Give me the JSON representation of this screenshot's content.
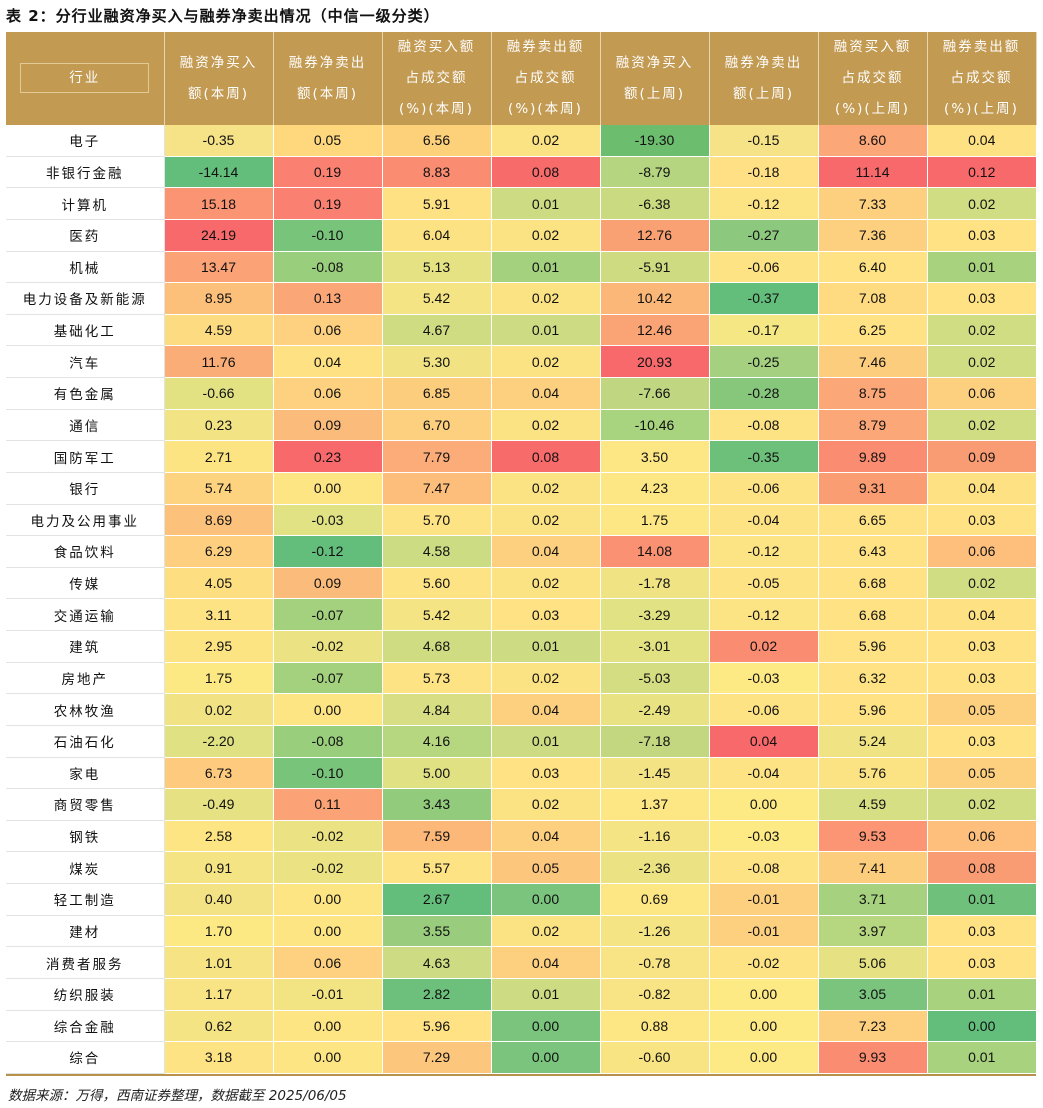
{
  "title": "表 2：分行业融资净买入与融券净卖出情况（中信一级分类）",
  "headers": [
    [
      "行业"
    ],
    [
      "融资净买入",
      "额(本周)"
    ],
    [
      "融券净卖出",
      "额(本周)"
    ],
    [
      "融资买入额",
      "占成交额",
      "(%)(本周)"
    ],
    [
      "融券卖出额",
      "占成交额",
      "(%)(本周)"
    ],
    [
      "融资净买入",
      "额(上周)"
    ],
    [
      "融券净卖出",
      "额(上周)"
    ],
    [
      "融资买入额",
      "占成交额",
      "(%)(上周)"
    ],
    [
      "融券卖出额",
      "占成交额",
      "(%)(上周)"
    ]
  ],
  "rows": [
    {
      "name": "电子",
      "values": [
        "-0.35",
        "0.05",
        "6.56",
        "0.02",
        "-19.30",
        "-0.15",
        "8.60",
        "0.04"
      ],
      "colors": [
        "#f6e287",
        "#ffd87e",
        "#fdd07a",
        "#fbe283",
        "#6dbd6e",
        "#f6e287",
        "#fca777",
        "#fee182"
      ]
    },
    {
      "name": "非银行金融",
      "values": [
        "-14.14",
        "0.19",
        "8.83",
        "0.08",
        "-8.79",
        "-0.18",
        "11.14",
        "0.12"
      ],
      "colors": [
        "#63be7b",
        "#fa8171",
        "#fa8c71",
        "#f86b6b",
        "#b5d580",
        "#ffe084",
        "#f8696b",
        "#f8696b"
      ]
    },
    {
      "name": "计算机",
      "values": [
        "15.18",
        "0.19",
        "5.91",
        "0.01",
        "-6.38",
        "-0.12",
        "7.33",
        "0.02"
      ],
      "colors": [
        "#fa9473",
        "#fa8171",
        "#fee183",
        "#cddc82",
        "#c9da81",
        "#fce384",
        "#fdd07f",
        "#d1dd82"
      ]
    },
    {
      "name": "医药",
      "values": [
        "24.19",
        "-0.10",
        "6.04",
        "0.02",
        "12.76",
        "-0.27",
        "7.36",
        "0.03"
      ],
      "colors": [
        "#f8696b",
        "#78c47a",
        "#fde283",
        "#fbe283",
        "#faa174",
        "#8cc97e",
        "#fdd07f",
        "#fee283"
      ]
    },
    {
      "name": "机械",
      "values": [
        "13.47",
        "-0.08",
        "5.13",
        "0.01",
        "-5.91",
        "-0.06",
        "6.40",
        "0.01"
      ],
      "colors": [
        "#fba276",
        "#99cf7c",
        "#e5e283",
        "#a3d17e",
        "#cfdb81",
        "#fde383",
        "#fee283",
        "#a9d27f"
      ]
    },
    {
      "name": "电力设备及新能源",
      "values": [
        "8.95",
        "0.13",
        "5.42",
        "0.02",
        "10.42",
        "-0.37",
        "7.08",
        "0.03"
      ],
      "colors": [
        "#fcc07b",
        "#fba676",
        "#f5e484",
        "#fbe283",
        "#fbb777",
        "#63be7b",
        "#feda81",
        "#fee283"
      ]
    },
    {
      "name": "基础化工",
      "values": [
        "4.59",
        "0.06",
        "4.67",
        "0.01",
        "12.46",
        "-0.17",
        "6.25",
        "0.02"
      ],
      "colors": [
        "#fddc81",
        "#fdd17f",
        "#cfdc82",
        "#cddc82",
        "#faa374",
        "#f4e784",
        "#fee283",
        "#d1dd82"
      ]
    },
    {
      "name": "汽车",
      "values": [
        "11.76",
        "0.04",
        "5.30",
        "0.02",
        "20.93",
        "-0.25",
        "7.46",
        "0.02"
      ],
      "colors": [
        "#fbad78",
        "#fde182",
        "#f1e384",
        "#fbe283",
        "#f8696b",
        "#a4d080",
        "#fdcd7e",
        "#d1dd82"
      ]
    },
    {
      "name": "有色金属",
      "values": [
        "-0.66",
        "0.06",
        "6.85",
        "0.04",
        "-7.66",
        "-0.28",
        "8.75",
        "0.06"
      ],
      "colors": [
        "#e3e283",
        "#fdd17f",
        "#fdcd7e",
        "#fdd07f",
        "#c0d681",
        "#86c77c",
        "#fca777",
        "#fdd07f"
      ]
    },
    {
      "name": "通信",
      "values": [
        "0.23",
        "0.09",
        "6.70",
        "0.02",
        "-10.46",
        "-0.08",
        "8.79",
        "0.02"
      ],
      "colors": [
        "#f2e384",
        "#fbbb7a",
        "#fdd07f",
        "#fbe283",
        "#a8d37f",
        "#fde383",
        "#fca777",
        "#d1dd82"
      ]
    },
    {
      "name": "国防军工",
      "values": [
        "2.71",
        "0.23",
        "7.79",
        "0.08",
        "3.50",
        "-0.35",
        "9.89",
        "0.09"
      ],
      "colors": [
        "#fde483",
        "#f8696b",
        "#fcac78",
        "#f86b6b",
        "#fde784",
        "#6dc07a",
        "#fa8c71",
        "#fa9c73"
      ]
    },
    {
      "name": "银行",
      "values": [
        "5.74",
        "0.00",
        "7.47",
        "0.02",
        "4.23",
        "-0.06",
        "9.31",
        "0.04"
      ],
      "colors": [
        "#fed37f",
        "#fee583",
        "#fdbe7b",
        "#fbe283",
        "#fde784",
        "#fde383",
        "#fb9d73",
        "#fee182"
      ]
    },
    {
      "name": "电力及公用事业",
      "values": [
        "8.69",
        "-0.03",
        "5.70",
        "0.02",
        "1.75",
        "-0.04",
        "6.65",
        "0.03"
      ],
      "colors": [
        "#fcc27c",
        "#e0e283",
        "#fde383",
        "#fbe283",
        "#fde784",
        "#fde383",
        "#fee283",
        "#fee283"
      ]
    },
    {
      "name": "食品饮料",
      "values": [
        "6.29",
        "-0.12",
        "4.58",
        "0.04",
        "14.08",
        "-0.12",
        "6.43",
        "0.06"
      ],
      "colors": [
        "#fecf7f",
        "#63be7b",
        "#cbdc82",
        "#fdd07f",
        "#fa9173",
        "#fce384",
        "#fee283",
        "#fdbf7b"
      ]
    },
    {
      "name": "传媒",
      "values": [
        "4.05",
        "0.09",
        "5.60",
        "0.02",
        "-1.78",
        "-0.05",
        "6.68",
        "0.02"
      ],
      "colors": [
        "#fddf82",
        "#fbbb7a",
        "#fde383",
        "#fbe283",
        "#f0e384",
        "#fde383",
        "#fee283",
        "#d1dd82"
      ]
    },
    {
      "name": "交通运输",
      "values": [
        "3.11",
        "-0.07",
        "5.42",
        "0.03",
        "-3.29",
        "-0.12",
        "6.68",
        "0.04"
      ],
      "colors": [
        "#fde383",
        "#a3d17e",
        "#f5e484",
        "#fee283",
        "#e1e283",
        "#fce384",
        "#fee283",
        "#fee182"
      ]
    },
    {
      "name": "建筑",
      "values": [
        "2.95",
        "-0.02",
        "4.68",
        "0.01",
        "-3.01",
        "0.02",
        "5.96",
        "0.03"
      ],
      "colors": [
        "#fde483",
        "#ebe383",
        "#cfdc82",
        "#cddc82",
        "#e3e283",
        "#fa8c71",
        "#fee283",
        "#fee283"
      ]
    },
    {
      "name": "房地产",
      "values": [
        "1.75",
        "-0.07",
        "5.73",
        "0.02",
        "-5.03",
        "-0.03",
        "6.32",
        "0.03"
      ],
      "colors": [
        "#fde983",
        "#a3d17e",
        "#fde383",
        "#fbe283",
        "#d4dd82",
        "#feea84",
        "#fee283",
        "#fee283"
      ]
    },
    {
      "name": "农林牧渔",
      "values": [
        "0.02",
        "0.00",
        "4.84",
        "0.04",
        "-2.49",
        "-0.06",
        "5.96",
        "0.05"
      ],
      "colors": [
        "#f1e384",
        "#fee583",
        "#d8de83",
        "#fdd07f",
        "#e8e283",
        "#fde383",
        "#fee283",
        "#fdd07f"
      ]
    },
    {
      "name": "石油石化",
      "values": [
        "-2.20",
        "-0.08",
        "4.16",
        "0.01",
        "-7.18",
        "0.04",
        "5.24",
        "0.03"
      ],
      "colors": [
        "#dfe183",
        "#99cf7c",
        "#b6d680",
        "#cddc82",
        "#c3d781",
        "#f8696b",
        "#f0e384",
        "#fee283"
      ]
    },
    {
      "name": "家电",
      "values": [
        "6.73",
        "-0.10",
        "5.00",
        "0.03",
        "-1.45",
        "-0.04",
        "5.76",
        "0.05"
      ],
      "colors": [
        "#fecb7e",
        "#78c47a",
        "#e0e183",
        "#fee283",
        "#f3e384",
        "#fde383",
        "#fbe383",
        "#fdd07f"
      ]
    },
    {
      "name": "商贸零售",
      "values": [
        "-0.49",
        "0.11",
        "3.43",
        "0.02",
        "1.37",
        "0.00",
        "4.59",
        "0.02"
      ],
      "colors": [
        "#e6e283",
        "#fba376",
        "#92cb7c",
        "#fbe283",
        "#fde784",
        "#feea84",
        "#d6df83",
        "#d1dd82"
      ]
    },
    {
      "name": "钢铁",
      "values": [
        "2.58",
        "-0.02",
        "7.59",
        "0.04",
        "-1.16",
        "-0.03",
        "9.53",
        "0.06"
      ],
      "colors": [
        "#fde583",
        "#ebe383",
        "#fcb878",
        "#fdd07f",
        "#f5e484",
        "#feea84",
        "#fb9573",
        "#fdbf7b"
      ]
    },
    {
      "name": "煤炭",
      "values": [
        "0.91",
        "-0.02",
        "5.57",
        "0.05",
        "-2.36",
        "-0.08",
        "7.41",
        "0.08"
      ],
      "colors": [
        "#f5e484",
        "#ebe383",
        "#fde383",
        "#fdc67d",
        "#ebe383",
        "#fde383",
        "#fdcd7e",
        "#fa9c73"
      ]
    },
    {
      "name": "轻工制造",
      "values": [
        "0.40",
        "0.00",
        "2.67",
        "0.00",
        "0.69",
        "-0.01",
        "3.71",
        "0.01"
      ],
      "colors": [
        "#f3e384",
        "#fee583",
        "#63be7b",
        "#7ac47d",
        "#fde784",
        "#fdd07f",
        "#a6d27f",
        "#6fc07b"
      ]
    },
    {
      "name": "建材",
      "values": [
        "1.70",
        "0.00",
        "3.55",
        "0.02",
        "-1.26",
        "-0.01",
        "3.97",
        "0.03"
      ],
      "colors": [
        "#fde983",
        "#fee583",
        "#99cd7d",
        "#fbe283",
        "#f4e484",
        "#fdd07f",
        "#b6d680",
        "#fee283"
      ]
    },
    {
      "name": "消费者服务",
      "values": [
        "1.01",
        "0.06",
        "4.63",
        "0.04",
        "-0.78",
        "-0.02",
        "5.06",
        "0.03"
      ],
      "colors": [
        "#f6e484",
        "#fdd17f",
        "#cddc82",
        "#fdd07f",
        "#f8e484",
        "#fde383",
        "#e6e283",
        "#fee283"
      ]
    },
    {
      "name": "纺织服装",
      "values": [
        "1.17",
        "-0.01",
        "2.82",
        "0.01",
        "-0.82",
        "0.00",
        "3.05",
        "0.01"
      ],
      "colors": [
        "#f8e484",
        "#f3e483",
        "#6cc07b",
        "#cddc82",
        "#f8e484",
        "#feea84",
        "#7ac47d",
        "#a9d27f"
      ]
    },
    {
      "name": "综合金融",
      "values": [
        "0.62",
        "0.00",
        "5.96",
        "0.00",
        "0.88",
        "0.00",
        "7.23",
        "0.00"
      ],
      "colors": [
        "#f4e484",
        "#fee583",
        "#fee283",
        "#7ac47d",
        "#fde784",
        "#feea84",
        "#fdd07f",
        "#63be7b"
      ]
    },
    {
      "name": "综合",
      "values": [
        "3.18",
        "0.00",
        "7.29",
        "0.00",
        "-0.60",
        "0.00",
        "9.93",
        "0.01"
      ],
      "colors": [
        "#fde383",
        "#fee583",
        "#fdc67d",
        "#7ac47d",
        "#f9e484",
        "#feea84",
        "#fa8c71",
        "#a9d27f"
      ]
    }
  ],
  "source": "数据来源：万得，西南证券整理，数据截至 2025/06/05"
}
